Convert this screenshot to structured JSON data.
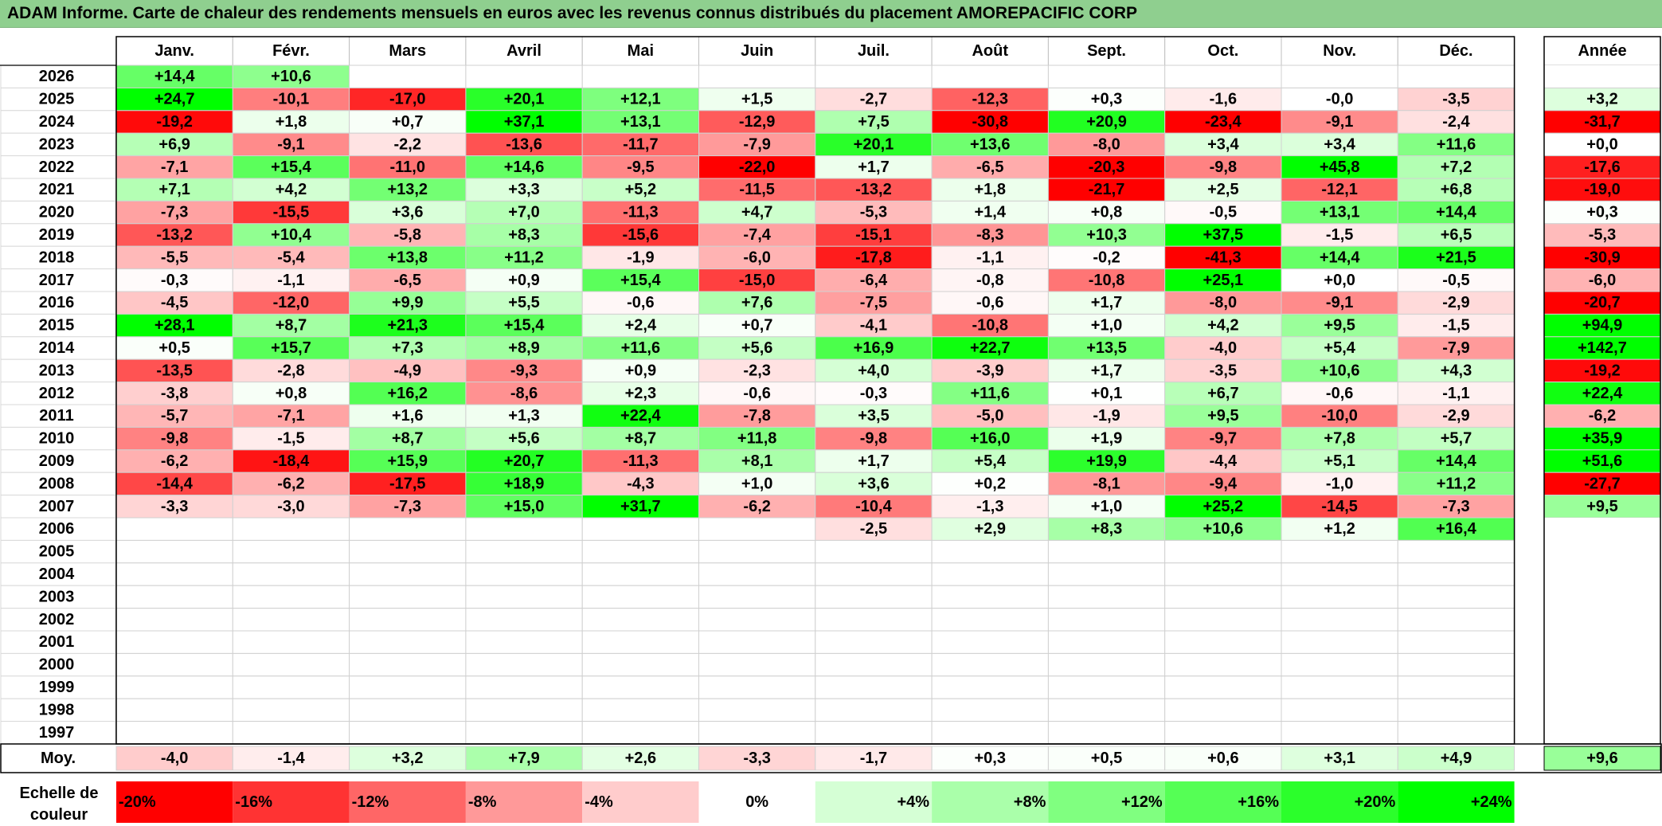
{
  "title": "ADAM Informe. Carte de chaleur des rendements mensuels en euros avec les revenus connus distribués du placement AMOREPACIFIC CORP",
  "colors": {
    "negative": "#ff0000",
    "neutral": "#ffffff",
    "positive": "#00ff00",
    "title_bg": "#8fcf8f"
  },
  "chart_data": {
    "type": "heatmap",
    "title": "ADAM Informe. Carte de chaleur des rendements mensuels en euros avec les revenus connus distribués du placement AMOREPACIFIC CORP",
    "months": [
      "Janv.",
      "Févr.",
      "Mars",
      "Avril",
      "Mai",
      "Juin",
      "Juil.",
      "Août",
      "Sept.",
      "Oct.",
      "Nov.",
      "Déc."
    ],
    "year_header": "Année",
    "avg_label": "Moy.",
    "scale_label": "Echelle de couleur",
    "years": [
      "2026",
      "2025",
      "2024",
      "2023",
      "2022",
      "2021",
      "2020",
      "2019",
      "2018",
      "2017",
      "2016",
      "2015",
      "2014",
      "2013",
      "2012",
      "2011",
      "2010",
      "2009",
      "2008",
      "2007",
      "2006",
      "2005",
      "2004",
      "2003",
      "2002",
      "2001",
      "2000",
      "1999",
      "1998",
      "1997"
    ],
    "values": [
      [
        "+14,4",
        "+10,6",
        "",
        "",
        "",
        "",
        "",
        "",
        "",
        "",
        "",
        ""
      ],
      [
        "+24,7",
        "-10,1",
        "-17,0",
        "+20,1",
        "+12,1",
        "+1,5",
        "-2,7",
        "-12,3",
        "+0,3",
        "-1,6",
        "-0,0",
        "-3,5"
      ],
      [
        "-19,2",
        "+1,8",
        "+0,7",
        "+37,1",
        "+13,1",
        "-12,9",
        "+7,5",
        "-30,8",
        "+20,9",
        "-23,4",
        "-9,1",
        "-2,4"
      ],
      [
        "+6,9",
        "-9,1",
        "-2,2",
        "-13,6",
        "-11,7",
        "-7,9",
        "+20,1",
        "+13,6",
        "-8,0",
        "+3,4",
        "+3,4",
        "+11,6"
      ],
      [
        "-7,1",
        "+15,4",
        "-11,0",
        "+14,6",
        "-9,5",
        "-22,0",
        "+1,7",
        "-6,5",
        "-20,3",
        "-9,8",
        "+45,8",
        "+7,2"
      ],
      [
        "+7,1",
        "+4,2",
        "+13,2",
        "+3,3",
        "+5,2",
        "-11,5",
        "-13,2",
        "+1,8",
        "-21,7",
        "+2,5",
        "-12,1",
        "+6,8"
      ],
      [
        "-7,3",
        "-15,5",
        "+3,6",
        "+7,0",
        "-11,3",
        "+4,7",
        "-5,3",
        "+1,4",
        "+0,8",
        "-0,5",
        "+13,1",
        "+14,4"
      ],
      [
        "-13,2",
        "+10,4",
        "-5,8",
        "+8,3",
        "-15,6",
        "-7,4",
        "-15,1",
        "-8,3",
        "+10,3",
        "+37,5",
        "-1,5",
        "+6,5"
      ],
      [
        "-5,5",
        "-5,4",
        "+13,8",
        "+11,2",
        "-1,9",
        "-6,0",
        "-17,8",
        "-1,1",
        "-0,2",
        "-41,3",
        "+14,4",
        "+21,5"
      ],
      [
        "-0,3",
        "-1,1",
        "-6,5",
        "+0,9",
        "+15,4",
        "-15,0",
        "-6,4",
        "-0,8",
        "-10,8",
        "+25,1",
        "+0,0",
        "-0,5"
      ],
      [
        "-4,5",
        "-12,0",
        "+9,9",
        "+5,5",
        "-0,6",
        "+7,6",
        "-7,5",
        "-0,6",
        "+1,7",
        "-8,0",
        "-9,1",
        "-2,9"
      ],
      [
        "+28,1",
        "+8,7",
        "+21,3",
        "+15,4",
        "+2,4",
        "+0,7",
        "-4,1",
        "-10,8",
        "+1,0",
        "+4,2",
        "+9,5",
        "-1,5"
      ],
      [
        "+0,5",
        "+15,7",
        "+7,3",
        "+8,9",
        "+11,6",
        "+5,6",
        "+16,9",
        "+22,7",
        "+13,5",
        "-4,0",
        "+5,4",
        "-7,9"
      ],
      [
        "-13,5",
        "-2,8",
        "-4,9",
        "-9,3",
        "+0,9",
        "-2,3",
        "+4,0",
        "-3,9",
        "+1,7",
        "-3,5",
        "+10,6",
        "+4,3"
      ],
      [
        "-3,8",
        "+0,8",
        "+16,2",
        "-8,6",
        "+2,3",
        "-0,6",
        "-0,3",
        "+11,6",
        "+0,1",
        "+6,7",
        "-0,6",
        "-1,1"
      ],
      [
        "-5,7",
        "-7,1",
        "+1,6",
        "+1,3",
        "+22,4",
        "-7,8",
        "+3,5",
        "-5,0",
        "-1,9",
        "+9,5",
        "-10,0",
        "-2,9"
      ],
      [
        "-9,8",
        "-1,5",
        "+8,7",
        "+5,6",
        "+8,7",
        "+11,8",
        "-9,8",
        "+16,0",
        "+1,9",
        "-9,7",
        "+7,8",
        "+5,7"
      ],
      [
        "-6,2",
        "-18,4",
        "+15,9",
        "+20,7",
        "-11,3",
        "+8,1",
        "+1,7",
        "+5,4",
        "+19,9",
        "-4,4",
        "+5,1",
        "+14,4"
      ],
      [
        "-14,4",
        "-6,2",
        "-17,5",
        "+18,9",
        "-4,3",
        "+1,0",
        "+3,6",
        "+0,2",
        "-8,1",
        "-9,4",
        "-1,0",
        "+11,2"
      ],
      [
        "-3,3",
        "-3,0",
        "-7,3",
        "+15,0",
        "+31,7",
        "-6,2",
        "-10,4",
        "-1,3",
        "+1,0",
        "+25,2",
        "-14,5",
        "-7,3"
      ],
      [
        "",
        "",
        "",
        "",
        "",
        "",
        "-2,5",
        "+2,9",
        "+8,3",
        "+10,6",
        "+1,2",
        "+16,4"
      ],
      [
        "",
        "",
        "",
        "",
        "",
        "",
        "",
        "",
        "",
        "",
        "",
        ""
      ],
      [
        "",
        "",
        "",
        "",
        "",
        "",
        "",
        "",
        "",
        "",
        "",
        ""
      ],
      [
        "",
        "",
        "",
        "",
        "",
        "",
        "",
        "",
        "",
        "",
        "",
        ""
      ],
      [
        "",
        "",
        "",
        "",
        "",
        "",
        "",
        "",
        "",
        "",
        "",
        ""
      ],
      [
        "",
        "",
        "",
        "",
        "",
        "",
        "",
        "",
        "",
        "",
        "",
        ""
      ],
      [
        "",
        "",
        "",
        "",
        "",
        "",
        "",
        "",
        "",
        "",
        "",
        ""
      ],
      [
        "",
        "",
        "",
        "",
        "",
        "",
        "",
        "",
        "",
        "",
        "",
        ""
      ],
      [
        "",
        "",
        "",
        "",
        "",
        "",
        "",
        "",
        "",
        "",
        "",
        ""
      ],
      [
        "",
        "",
        "",
        "",
        "",
        "",
        "",
        "",
        "",
        "",
        "",
        ""
      ]
    ],
    "annual": [
      "",
      "+3,2",
      "-31,7",
      "+0,0",
      "-17,6",
      "-19,0",
      "+0,3",
      "-5,3",
      "-30,9",
      "-6,0",
      "-20,7",
      "+94,9",
      "+142,7",
      "-19,2",
      "+22,4",
      "-6,2",
      "+35,9",
      "+51,6",
      "-27,7",
      "+9,5",
      "",
      "",
      "",
      "",
      "",
      "",
      "",
      "",
      "",
      ""
    ],
    "averages": [
      "-4,0",
      "-1,4",
      "+3,2",
      "+7,9",
      "+2,6",
      "-3,3",
      "-1,7",
      "+0,3",
      "+0,5",
      "+0,6",
      "+3,1",
      "+4,9"
    ],
    "annual_average": "+9,6",
    "scale": [
      "-20%",
      "-16%",
      "-12%",
      "-8%",
      "-4%",
      "0%",
      "+4%",
      "+8%",
      "+12%",
      "+16%",
      "+20%",
      "+24%"
    ]
  }
}
